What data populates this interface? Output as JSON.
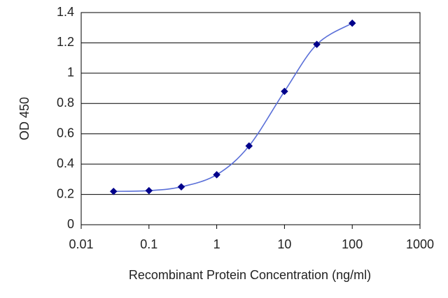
{
  "chart_data": {
    "type": "line",
    "title": "",
    "xlabel": "Recombinant Protein Concentration (ng/ml)",
    "ylabel": "OD 450",
    "x_scale": "log",
    "xlim": [
      0.01,
      1000
    ],
    "ylim": [
      0,
      1.4
    ],
    "x_ticks": [
      0.01,
      0.1,
      1,
      10,
      100,
      1000
    ],
    "x_tick_labels": [
      "0.01",
      "0.1",
      "1",
      "10",
      "100",
      "1000"
    ],
    "y_ticks": [
      0,
      0.2,
      0.4,
      0.6,
      0.8,
      1,
      1.2,
      1.4
    ],
    "y_tick_labels": [
      "0",
      "0.2",
      "0.4",
      "0.6",
      "0.8",
      "1",
      "1.2",
      "1.4"
    ],
    "grid": "horizontal",
    "legend": "none",
    "series": [
      {
        "x": [
          0.03,
          0.1,
          0.3,
          1,
          3,
          10,
          30,
          100
        ],
        "y": [
          0.22,
          0.225,
          0.25,
          0.33,
          0.52,
          0.88,
          1.19,
          1.33
        ],
        "color": "#00008b",
        "line_color": "#5a6fd8",
        "marker": "diamond"
      }
    ]
  }
}
